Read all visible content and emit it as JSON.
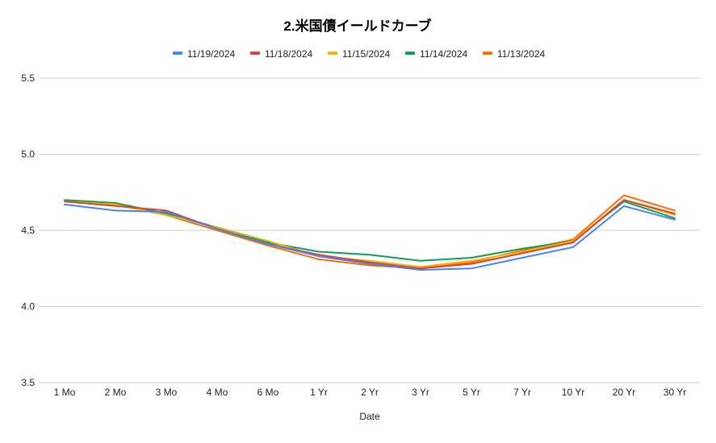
{
  "chart_data": {
    "type": "line",
    "title": "2.米国債イールドカーブ",
    "xlabel": "Date",
    "ylabel": "",
    "categories": [
      "1 Mo",
      "2 Mo",
      "3 Mo",
      "4 Mo",
      "6 Mo",
      "1 Yr",
      "2 Yr",
      "3 Yr",
      "5 Yr",
      "7 Yr",
      "10 Yr",
      "20 Yr",
      "30 Yr"
    ],
    "ylim": [
      3.5,
      5.5
    ],
    "yticks": [
      "3.5",
      "4.0",
      "4.5",
      "5.0",
      "5.5"
    ],
    "grid": true,
    "legend_position": "top",
    "series": [
      {
        "name": "11/19/2024",
        "color": "#4285f4",
        "values": [
          4.67,
          4.63,
          4.62,
          4.51,
          4.41,
          4.33,
          4.28,
          4.24,
          4.25,
          4.32,
          4.39,
          4.66,
          4.57
        ]
      },
      {
        "name": "11/18/2024",
        "color": "#db4437",
        "values": [
          4.69,
          4.66,
          4.63,
          4.51,
          4.41,
          4.34,
          4.29,
          4.25,
          4.28,
          4.35,
          4.42,
          4.7,
          4.61
        ]
      },
      {
        "name": "11/15/2024",
        "color": "#f4b400",
        "values": [
          4.69,
          4.67,
          4.6,
          4.52,
          4.43,
          4.33,
          4.3,
          4.26,
          4.3,
          4.36,
          4.43,
          4.7,
          4.6
        ]
      },
      {
        "name": "11/14/2024",
        "color": "#0f9d58",
        "values": [
          4.7,
          4.68,
          4.61,
          4.52,
          4.42,
          4.36,
          4.34,
          4.3,
          4.32,
          4.38,
          4.43,
          4.69,
          4.58
        ]
      },
      {
        "name": "11/13/2024",
        "color": "#ff6d01",
        "values": [
          4.69,
          4.67,
          4.6,
          4.5,
          4.4,
          4.31,
          4.27,
          4.25,
          4.29,
          4.37,
          4.44,
          4.73,
          4.63
        ]
      }
    ]
  }
}
